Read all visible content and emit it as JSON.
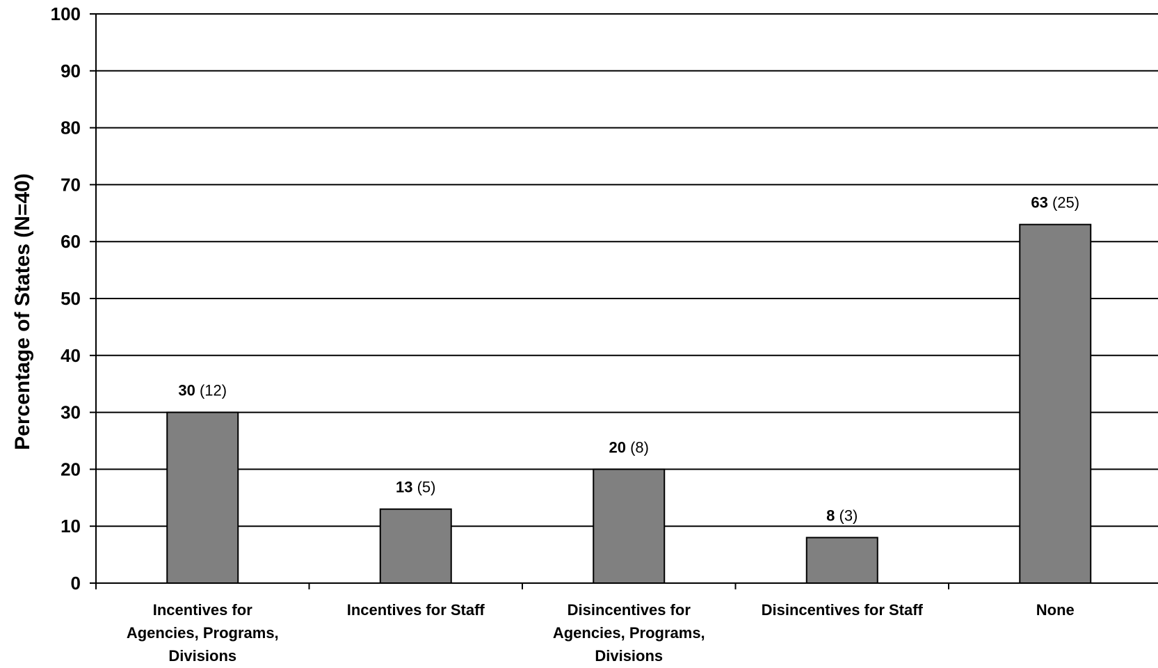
{
  "chart_data": {
    "type": "bar",
    "ylabel": "Percentage of States (N=40)",
    "ylim": [
      0,
      100
    ],
    "yticks": [
      0,
      10,
      20,
      30,
      40,
      50,
      60,
      70,
      80,
      90,
      100
    ],
    "grid": true,
    "categories": [
      [
        "Incentives for",
        "Agencies, Programs,",
        "Divisions"
      ],
      [
        "Incentives for Staff"
      ],
      [
        "Disincentives for",
        "Agencies, Programs,",
        "Divisions"
      ],
      [
        "Disincentives for Staff"
      ],
      [
        "None"
      ]
    ],
    "values": [
      30,
      13,
      20,
      8,
      63
    ],
    "counts": [
      12,
      5,
      8,
      3,
      25
    ],
    "data_labels": [
      {
        "value": "30",
        "count": "(12)"
      },
      {
        "value": "13",
        "count": "(5)"
      },
      {
        "value": "20",
        "count": "(8)"
      },
      {
        "value": "8",
        "count": "(3)"
      },
      {
        "value": "63",
        "count": "(25)"
      }
    ],
    "bar_color": "#808080"
  }
}
